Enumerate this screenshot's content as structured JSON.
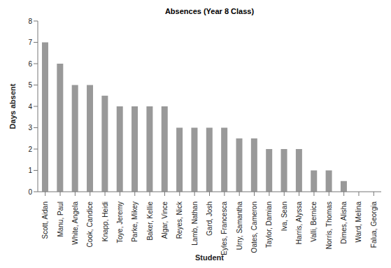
{
  "chart_data": {
    "type": "bar",
    "title": "Absences (Year 8 Class)",
    "x_label": "Student",
    "y_label": "Days absent",
    "categories": [
      "Scott, Aidan",
      "Manu, Paul",
      "White, Angela",
      "Cook, Candice",
      "Knapp, Heidi",
      "Toye, Jeremy",
      "Parke, Mikey",
      "Baker, Kellie",
      "Algar, Vince",
      "Reyes, Nick",
      "Lamb, Nathan",
      "Gard, Josh",
      "Eyles, Francesca",
      "Urry, Samantha",
      "Oates, Cameron",
      "Taylor, Damian",
      "Iva, Sean",
      "Harris, Alyssa",
      "Valli, Bernice",
      "Norris, Thomas",
      "Dimes, Alisha",
      "Ward, Melina",
      "Falua, Georgia"
    ],
    "values": [
      7,
      6,
      5,
      5,
      4.5,
      4,
      4,
      4,
      4,
      3,
      3,
      3,
      3,
      2.5,
      2.5,
      2,
      2,
      2,
      1,
      1,
      0.5,
      0,
      0
    ],
    "color": "#999999",
    "ylim": [
      0,
      8
    ],
    "yticks": [
      0,
      1,
      2,
      3,
      4,
      5,
      6,
      7,
      8
    ],
    "grid": false
  }
}
